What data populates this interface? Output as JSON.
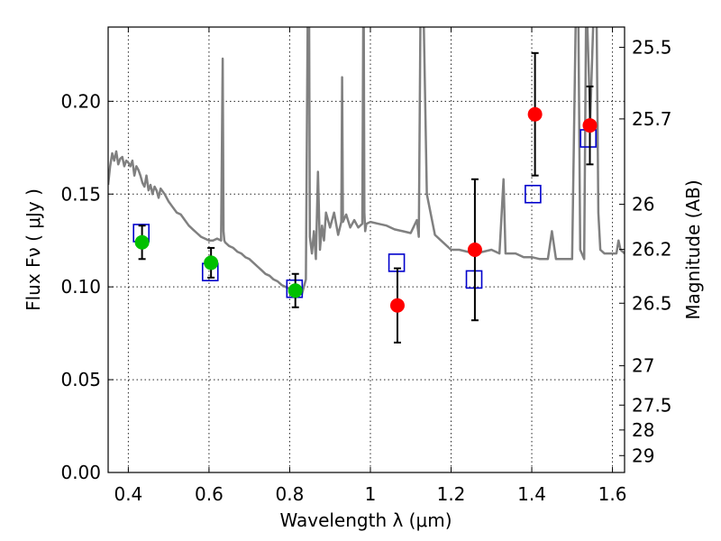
{
  "chart_data": {
    "type": "scatter",
    "title": "",
    "xlabel": "Wavelength  λ (μm)",
    "ylabel": "Flux  Fν  ( μJy )",
    "y2label": "Magnitude (AB)",
    "xlim": [
      0.35,
      1.63
    ],
    "ylim": [
      0.0,
      0.24
    ],
    "grid": true,
    "x_ticks": [
      0.4,
      0.6,
      0.8,
      1.0,
      1.2,
      1.4,
      1.6
    ],
    "x_tick_labels": [
      "0.4",
      "0.6",
      "0.8",
      "1",
      "1.2",
      "1.4",
      "1.6"
    ],
    "y_ticks": [
      0.0,
      0.05,
      0.1,
      0.15,
      0.2
    ],
    "y_tick_labels": [
      "0.00",
      "0.05",
      "0.10",
      "0.15",
      "0.20"
    ],
    "mag_ticks": [
      {
        "label": "25.5",
        "flux": 0.2291
      },
      {
        "label": "25.7",
        "flux": 0.1905
      },
      {
        "label": "26",
        "flux": 0.1445
      },
      {
        "label": "26.2",
        "flux": 0.1202
      },
      {
        "label": "26.5",
        "flux": 0.0912
      },
      {
        "label": "27",
        "flux": 0.0575
      },
      {
        "label": "27.5",
        "flux": 0.0363
      },
      {
        "label": "28",
        "flux": 0.0229
      },
      {
        "label": "29",
        "flux": 0.0091
      }
    ],
    "colors": {
      "model": "#808080",
      "optical": "#00c000",
      "nir": "#ff0000",
      "model_flux": "#0000cc",
      "errorbar": "#000000"
    },
    "series": [
      {
        "type": "line",
        "x": [
          0.35,
          0.355,
          0.36,
          0.365,
          0.37,
          0.375,
          0.38,
          0.385,
          0.39,
          0.395,
          0.4,
          0.405,
          0.41,
          0.415,
          0.42,
          0.425,
          0.43,
          0.435,
          0.44,
          0.445,
          0.45,
          0.455,
          0.46,
          0.465,
          0.47,
          0.475,
          0.48,
          0.49,
          0.5,
          0.51,
          0.52,
          0.53,
          0.54,
          0.55,
          0.56,
          0.57,
          0.58,
          0.59,
          0.6,
          0.61,
          0.62,
          0.63,
          0.634,
          0.636,
          0.638,
          0.64,
          0.65,
          0.66,
          0.67,
          0.68,
          0.69,
          0.7,
          0.71,
          0.72,
          0.73,
          0.74,
          0.75,
          0.76,
          0.77,
          0.78,
          0.79,
          0.8,
          0.81,
          0.82,
          0.83,
          0.84,
          0.845,
          0.848,
          0.85,
          0.855,
          0.86,
          0.865,
          0.87,
          0.875,
          0.88,
          0.885,
          0.89,
          0.9,
          0.91,
          0.92,
          0.928,
          0.93,
          0.932,
          0.94,
          0.95,
          0.96,
          0.97,
          0.98,
          0.983,
          0.985,
          0.987,
          0.99,
          1.0,
          1.02,
          1.04,
          1.06,
          1.08,
          1.1,
          1.115,
          1.12,
          1.125,
          1.13,
          1.14,
          1.16,
          1.18,
          1.2,
          1.22,
          1.24,
          1.26,
          1.28,
          1.3,
          1.32,
          1.33,
          1.335,
          1.34,
          1.36,
          1.38,
          1.4,
          1.42,
          1.44,
          1.45,
          1.46,
          1.48,
          1.5,
          1.51,
          1.515,
          1.52,
          1.53,
          1.535,
          1.545,
          1.555,
          1.56,
          1.565,
          1.57,
          1.58,
          1.59,
          1.6,
          1.61,
          1.615,
          1.62,
          1.63
        ],
        "y": [
          0.155,
          0.165,
          0.172,
          0.168,
          0.173,
          0.166,
          0.169,
          0.17,
          0.165,
          0.168,
          0.167,
          0.165,
          0.168,
          0.16,
          0.165,
          0.163,
          0.16,
          0.156,
          0.154,
          0.16,
          0.152,
          0.155,
          0.15,
          0.154,
          0.152,
          0.148,
          0.153,
          0.15,
          0.146,
          0.143,
          0.14,
          0.139,
          0.136,
          0.133,
          0.131,
          0.129,
          0.127,
          0.126,
          0.125,
          0.125,
          0.126,
          0.125,
          0.223,
          0.13,
          0.125,
          0.124,
          0.122,
          0.121,
          0.119,
          0.118,
          0.116,
          0.115,
          0.113,
          0.111,
          0.109,
          0.107,
          0.106,
          0.104,
          0.103,
          0.101,
          0.1,
          0.099,
          0.098,
          0.097,
          0.096,
          0.104,
          0.26,
          0.26,
          0.127,
          0.118,
          0.13,
          0.115,
          0.162,
          0.12,
          0.133,
          0.125,
          0.14,
          0.132,
          0.14,
          0.128,
          0.135,
          0.213,
          0.135,
          0.139,
          0.132,
          0.136,
          0.132,
          0.134,
          0.28,
          0.14,
          0.13,
          0.134,
          0.135,
          0.134,
          0.133,
          0.131,
          0.13,
          0.129,
          0.136,
          0.127,
          0.27,
          0.27,
          0.15,
          0.128,
          0.124,
          0.12,
          0.12,
          0.119,
          0.118,
          0.119,
          0.12,
          0.118,
          0.158,
          0.118,
          0.118,
          0.118,
          0.116,
          0.116,
          0.115,
          0.115,
          0.13,
          0.115,
          0.115,
          0.115,
          0.26,
          0.26,
          0.12,
          0.115,
          0.26,
          0.19,
          0.26,
          0.26,
          0.14,
          0.12,
          0.118,
          0.118,
          0.118,
          0.118,
          0.125,
          0.12,
          0.118
        ]
      },
      {
        "type": "scatter",
        "marker": "circle",
        "x": [
          0.434,
          0.605,
          0.814
        ],
        "y": [
          0.124,
          0.113,
          0.098
        ],
        "yerr": [
          0.009,
          0.008,
          0.009
        ]
      },
      {
        "type": "scatter",
        "marker": "circle",
        "x": [
          1.067,
          1.259,
          1.408,
          1.544
        ],
        "y": [
          0.09,
          0.12,
          0.193,
          0.187
        ],
        "yerr": [
          0.02,
          0.038,
          0.033,
          0.021
        ]
      },
      {
        "type": "scatter",
        "marker": "square-open",
        "x": [
          0.432,
          0.603,
          0.812,
          1.065,
          1.257,
          1.403,
          1.54
        ],
        "y": [
          0.129,
          0.108,
          0.099,
          0.113,
          0.104,
          0.15,
          0.18
        ]
      }
    ]
  }
}
